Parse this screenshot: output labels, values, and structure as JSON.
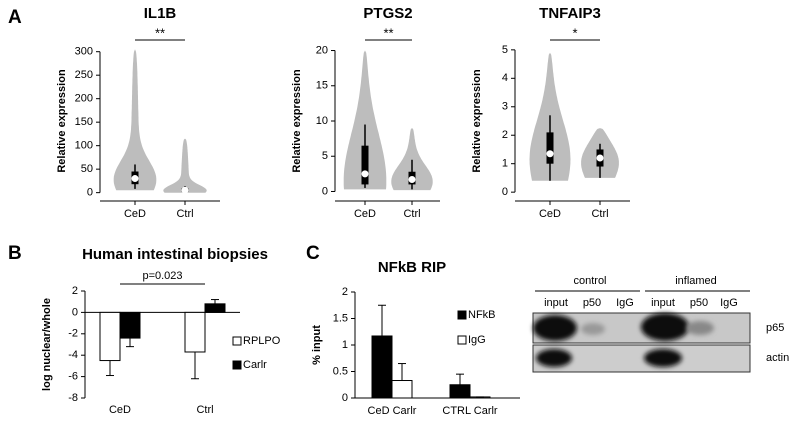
{
  "panels": [
    "A",
    "B",
    "C"
  ],
  "chart_data": [
    {
      "type": "violin",
      "title": "IL1B",
      "y_label": "Relative expression",
      "categories": [
        "CeD",
        "Ctrl"
      ],
      "color": "#bdbdbd",
      "significance": "**",
      "stats": [
        {
          "min": 5,
          "whisker_low": 8,
          "q1": 18,
          "median": 30,
          "q3": 45,
          "whisker_high": 60,
          "max": 305
        },
        {
          "min": 0,
          "whisker_low": 1,
          "q1": 2,
          "median": 5,
          "q3": 9,
          "whisker_high": 14,
          "max": 115
        }
      ],
      "ylim": [
        -5,
        310
      ],
      "yticks": [
        0,
        50,
        100,
        150,
        200,
        250,
        300
      ]
    },
    {
      "type": "violin",
      "title": "PTGS2",
      "y_label": "Relative expression",
      "categories": [
        "CeD",
        "Ctrl"
      ],
      "color": "#bdbdbd",
      "significance": "**",
      "stats": [
        {
          "min": 0.3,
          "whisker_low": 0.5,
          "q1": 1,
          "median": 2.5,
          "q3": 6.5,
          "whisker_high": 9.5,
          "max": 20
        },
        {
          "min": 0.2,
          "whisker_low": 0.3,
          "q1": 1,
          "median": 1.7,
          "q3": 2.8,
          "whisker_high": 4.5,
          "max": 9
        }
      ],
      "ylim": [
        -0.5,
        20.5
      ],
      "yticks": [
        0,
        5,
        10,
        15,
        20
      ]
    },
    {
      "type": "violin",
      "title": "TNFAIP3",
      "y_label": "Relative expression",
      "categories": [
        "CeD",
        "Ctrl"
      ],
      "color": "#bdbdbd",
      "significance": "*",
      "stats": [
        {
          "min": 0.4,
          "whisker_low": 0.4,
          "q1": 1,
          "median": 1.35,
          "q3": 2.1,
          "whisker_high": 2.7,
          "max": 4.9
        },
        {
          "min": 0.5,
          "whisker_low": 0.5,
          "q1": 0.9,
          "median": 1.2,
          "q3": 1.5,
          "whisker_high": 1.7,
          "max": 2.25
        }
      ],
      "ylim": [
        -0.1,
        5.1
      ],
      "yticks": [
        0,
        1,
        2,
        3,
        4,
        5
      ]
    },
    {
      "type": "bar",
      "title": "Human intestinal biopsies",
      "y_label": "log nuclear/whole",
      "categories": [
        "CeD",
        "Ctrl"
      ],
      "annotation": "p=0.023",
      "series": [
        {
          "name": "RPLPO",
          "color": "#ffffff",
          "values": [
            -4.5,
            -3.7
          ],
          "errors": [
            1.4,
            2.5
          ]
        },
        {
          "name": "Carlr",
          "color": "#000000",
          "values": [
            -2.4,
            0.8
          ],
          "errors": [
            0.8,
            0.4
          ]
        }
      ],
      "ylim": [
        -8,
        2
      ],
      "yticks": [
        -8,
        -6,
        -4,
        -2,
        0,
        2
      ]
    },
    {
      "type": "bar",
      "title": "NFkB RIP",
      "y_label": "% input",
      "categories": [
        "CeD Carlr",
        "CTRL Carlr"
      ],
      "series": [
        {
          "name": "NFkB",
          "color": "#000000",
          "values": [
            1.17,
            0.25
          ],
          "errors": [
            0.58,
            0.2
          ]
        },
        {
          "name": "IgG",
          "color": "#ffffff",
          "values": [
            0.33,
            0.02
          ],
          "errors": [
            0.32,
            0
          ]
        }
      ],
      "ylim": [
        0,
        2
      ],
      "yticks": [
        0,
        0.5,
        1,
        1.5,
        2
      ]
    }
  ],
  "blot": {
    "groups": [
      "control",
      "inflamed"
    ],
    "lanes": [
      "input",
      "p50",
      "IgG",
      "input",
      "p50",
      "IgG"
    ],
    "rows": [
      "p65",
      "actin"
    ]
  }
}
